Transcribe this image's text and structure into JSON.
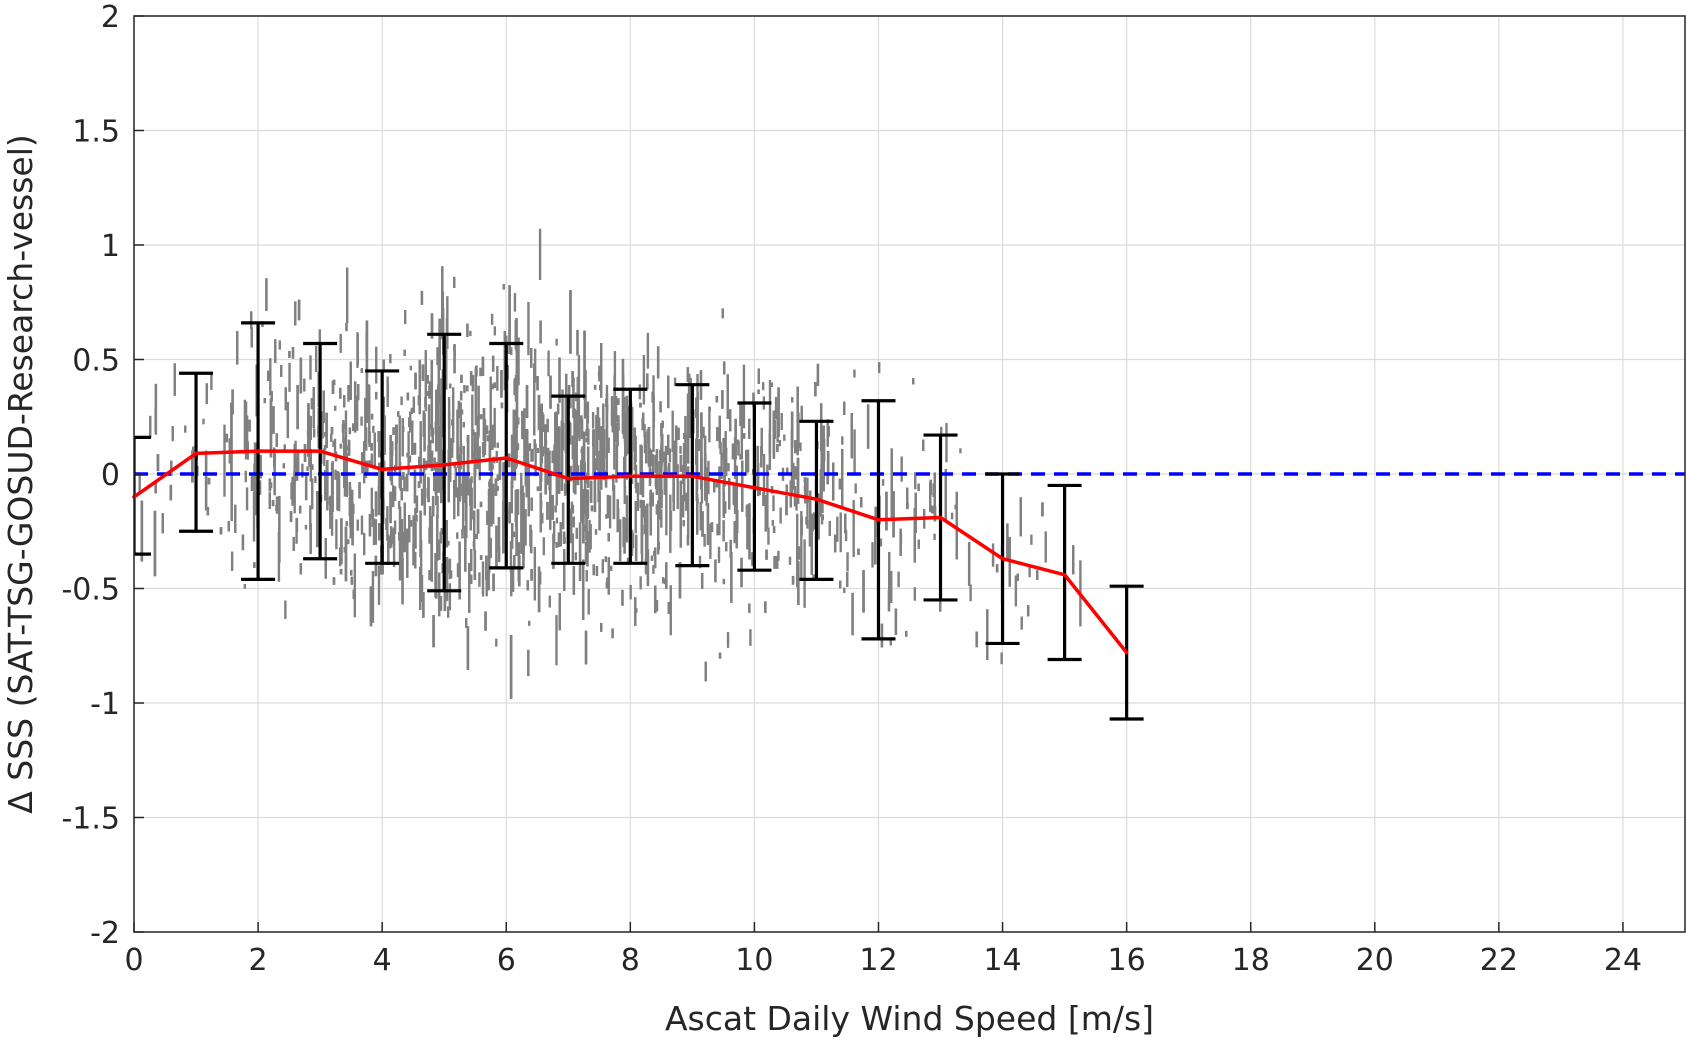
{
  "chart_data": {
    "type": "scatter",
    "xlabel": "Ascat Daily Wind Speed [m/s]",
    "ylabel": "Δ SSS (SAT-TSG-GOSUD-Research-vessel)",
    "xlim": [
      0,
      25
    ],
    "ylim": [
      -2,
      2
    ],
    "x_ticks": [
      0,
      2,
      4,
      6,
      8,
      10,
      12,
      14,
      16,
      18,
      20,
      22,
      24
    ],
    "y_ticks": [
      -2,
      -1.5,
      -1,
      -0.5,
      0,
      0.5,
      1,
      1.5,
      2
    ],
    "x_tick_labels": [
      "0",
      "2",
      "4",
      "6",
      "8",
      "10",
      "12",
      "14",
      "16",
      "18",
      "20",
      "22",
      "24"
    ],
    "y_tick_labels": [
      "-2",
      "-1.5",
      "-1",
      "-0.5",
      "0",
      "0.5",
      "1",
      "1.5",
      "2"
    ],
    "grid": true,
    "colors": {
      "scatter": "#808080",
      "mean_line": "#ff0000",
      "zero_line": "#0000ff",
      "error_bars": "#000000"
    },
    "scatter_density": [
      {
        "x": 0,
        "sigma": 0.2,
        "weight": 2
      },
      {
        "x": 1,
        "sigma": 0.3,
        "weight": 4
      },
      {
        "x": 2,
        "sigma": 0.45,
        "weight": 10
      },
      {
        "x": 3,
        "sigma": 0.42,
        "weight": 14
      },
      {
        "x": 4,
        "sigma": 0.45,
        "weight": 22
      },
      {
        "x": 5,
        "sigma": 0.5,
        "weight": 28
      },
      {
        "x": 6,
        "sigma": 0.48,
        "weight": 26
      },
      {
        "x": 7,
        "sigma": 0.38,
        "weight": 22
      },
      {
        "x": 8,
        "sigma": 0.38,
        "weight": 20
      },
      {
        "x": 9,
        "sigma": 0.38,
        "weight": 16
      },
      {
        "x": 10,
        "sigma": 0.36,
        "weight": 12
      },
      {
        "x": 11,
        "sigma": 0.35,
        "weight": 9
      },
      {
        "x": 12,
        "sigma": 0.4,
        "weight": 6
      },
      {
        "x": 13,
        "sigma": 0.36,
        "weight": 4
      },
      {
        "x": 14,
        "sigma": 0.36,
        "weight": 2
      },
      {
        "x": 15,
        "sigma": 0.34,
        "weight": 1
      },
      {
        "x": 15.5,
        "sigma": 0.2,
        "weight": 0.3
      }
    ],
    "mean_series": {
      "x": [
        0,
        1,
        2,
        3,
        4,
        5,
        6,
        7,
        8,
        9,
        10,
        11,
        12,
        13,
        14,
        15,
        16
      ],
      "values": [
        -0.1,
        0.09,
        0.1,
        0.1,
        0.02,
        0.04,
        0.07,
        -0.02,
        -0.01,
        -0.01,
        -0.06,
        -0.11,
        -0.2,
        -0.19,
        -0.37,
        -0.44,
        -0.78
      ]
    },
    "error_bars": {
      "x": [
        0,
        1,
        2,
        3,
        4,
        5,
        6,
        7,
        8,
        9,
        10,
        11,
        12,
        13,
        14,
        15,
        16
      ],
      "upper": [
        0.16,
        0.44,
        0.66,
        0.57,
        0.45,
        0.61,
        0.57,
        0.34,
        0.37,
        0.39,
        0.31,
        0.23,
        0.32,
        0.17,
        0.0,
        -0.05,
        -0.49
      ],
      "lower": [
        -0.35,
        -0.25,
        -0.46,
        -0.37,
        -0.39,
        -0.51,
        -0.41,
        -0.39,
        -0.39,
        -0.4,
        -0.42,
        -0.46,
        -0.72,
        -0.55,
        -0.74,
        -0.81,
        -1.07
      ]
    },
    "zero_line_y": 0
  }
}
